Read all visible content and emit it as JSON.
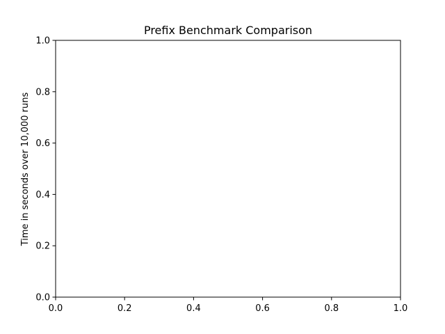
{
  "chart_data": {
    "type": "line",
    "title": "Prefix Benchmark Comparison",
    "xlabel": "",
    "ylabel": "Time in seconds over 10,000 runs",
    "xlim": [
      0.0,
      1.0
    ],
    "ylim": [
      0.0,
      1.0
    ],
    "x_ticks": [
      0.0,
      0.2,
      0.4,
      0.6,
      0.8,
      1.0
    ],
    "y_ticks": [
      0.0,
      0.2,
      0.4,
      0.6,
      0.8,
      1.0
    ],
    "x_tick_labels": [
      "0.0",
      "0.2",
      "0.4",
      "0.6",
      "0.8",
      "1.0"
    ],
    "y_tick_labels": [
      "0.0",
      "0.2",
      "0.4",
      "0.6",
      "0.8",
      "1.0"
    ],
    "series": [],
    "grid": false,
    "legend": "none",
    "colors": {
      "axis": "#000000",
      "background": "#ffffff"
    }
  }
}
